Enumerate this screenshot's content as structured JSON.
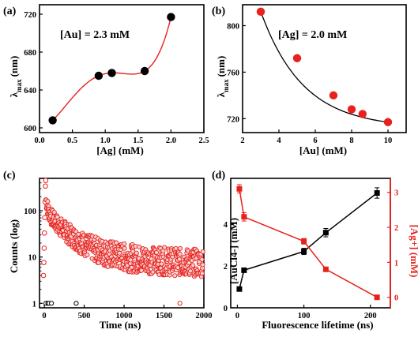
{
  "chart_data": [
    {
      "type": "scatter",
      "panel_label": "(a)",
      "annotation": "[Au] = 2.3 mM",
      "xlabel": "[Ag] (mM)",
      "ylabel_main": "λ",
      "ylabel_sub": "max",
      "ylabel_unit": "(nm)",
      "xlim": [
        0.0,
        2.5
      ],
      "ylim": [
        595,
        730
      ],
      "xticks": [
        "0.0",
        "0.5",
        "1.0",
        "1.5",
        "2.0",
        "2.5"
      ],
      "yticks": [
        "600",
        "640",
        "680",
        "720"
      ],
      "x": [
        0.2,
        0.9,
        1.1,
        1.6,
        2.0
      ],
      "y": [
        608,
        655,
        658,
        660,
        717
      ],
      "marker_color": "#000000",
      "line_color": "#e8211d"
    },
    {
      "type": "scatter",
      "panel_label": "(b)",
      "annotation": "[Ag] = 2.0 mM",
      "xlabel": "[Au] (mM)",
      "ylabel_main": "λ",
      "ylabel_sub": "max",
      "ylabel_unit": "(nm)",
      "xlim": [
        2,
        11
      ],
      "ylim": [
        708,
        818
      ],
      "xticks": [
        "2",
        "4",
        "6",
        "8",
        "10"
      ],
      "yticks": [
        "720",
        "760",
        "800"
      ],
      "x": [
        3,
        5,
        7,
        8,
        8.6,
        10
      ],
      "y": [
        812,
        772,
        740,
        728,
        724,
        717
      ],
      "marker_color": "#e8211d",
      "line_color": "#000000"
    },
    {
      "type": "scatter",
      "panel_label": "(c)",
      "xlabel": "Time (ns)",
      "ylabel": "Counts (log)",
      "xlim": [
        -60,
        2000
      ],
      "ylim_log": [
        0.8,
        500
      ],
      "xticks": [
        "0",
        "500",
        "1000",
        "1500",
        "2000"
      ],
      "yticks": [
        "1",
        "10",
        "100"
      ],
      "series": [
        {
          "marker_color": "#e8211d",
          "profile": "decay",
          "peak": 450,
          "tail": 7
        },
        {
          "marker_color": "#000000",
          "profile": "sparse",
          "x": [
            20,
            45,
            60,
            90,
            400
          ],
          "y": [
            1,
            1,
            1,
            1,
            1
          ]
        }
      ]
    },
    {
      "type": "line",
      "panel_label": "(d)",
      "xlabel": "Fluorescence lifetime (ns)",
      "ylabel_left": "[AuCl4-] (mM)",
      "ylabel_right": "[Ag+] (mM)",
      "xlim": [
        -10,
        230
      ],
      "ylim_left": [
        0,
        6.2
      ],
      "ylim_right": [
        -0.3,
        3.4
      ],
      "xticks": [
        "0",
        "100",
        "200"
      ],
      "yticks_left": [
        "0",
        "2",
        "4"
      ],
      "yticks_right": [
        "0",
        "1",
        "2",
        "3"
      ],
      "series": [
        {
          "axis": "left",
          "color": "#000000",
          "x": [
            3,
            10,
            100,
            133,
            210
          ],
          "y": [
            0.9,
            1.8,
            2.7,
            3.6,
            5.5
          ],
          "err": [
            0.1,
            0.1,
            0.15,
            0.2,
            0.25
          ]
        },
        {
          "axis": "right",
          "color": "#e8211d",
          "x": [
            3,
            10,
            100,
            133,
            210
          ],
          "y": [
            3.1,
            2.3,
            1.6,
            0.8,
            0.0
          ],
          "err": [
            0.12,
            0.12,
            0.08,
            0.05,
            0.03
          ]
        }
      ]
    }
  ]
}
